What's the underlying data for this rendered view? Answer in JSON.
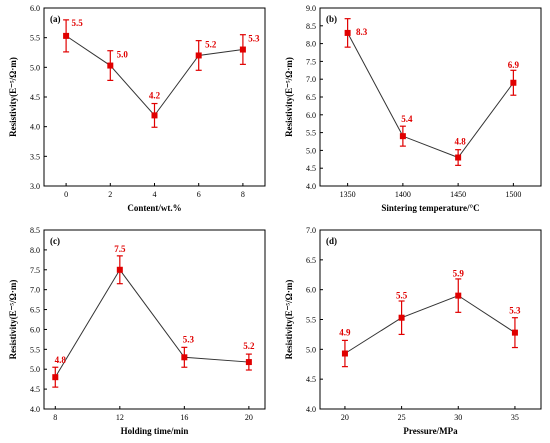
{
  "colors": {
    "marker": "#e00000",
    "line": "#333333",
    "label": "#e00000",
    "axis": "#000000"
  },
  "chart_data": [
    {
      "type": "line",
      "panel_label": "(a)",
      "xlabel": "Content/wt.%",
      "ylabel": "Resistivity(E⁻⁵/Ω·m)",
      "x": [
        0,
        2,
        4,
        6,
        8
      ],
      "y": [
        5.53,
        5.03,
        4.19,
        5.2,
        5.3
      ],
      "yerr": [
        0.27,
        0.25,
        0.2,
        0.25,
        0.25
      ],
      "data_labels": [
        "5.5",
        "5.0",
        "4.2",
        "5.2",
        "5.3"
      ],
      "xlim": [
        -1,
        9
      ],
      "ylim": [
        3.0,
        6.0
      ],
      "xticks": [
        "0",
        "2",
        "4",
        "6",
        "8"
      ],
      "yticks": [
        "3.0",
        "3.5",
        "4.0",
        "4.5",
        "5.0",
        "5.5",
        "6.0"
      ]
    },
    {
      "type": "line",
      "panel_label": "(b)",
      "xlabel": "Sintering temperature/°C",
      "ylabel": "Resistivity(E⁻⁵/Ω·m)",
      "x": [
        1350,
        1400,
        1450,
        1500
      ],
      "y": [
        8.3,
        5.4,
        4.8,
        6.9
      ],
      "yerr": [
        0.4,
        0.28,
        0.22,
        0.35
      ],
      "data_labels": [
        "8.3",
        "5.4",
        "4.8",
        "6.9"
      ],
      "xlim": [
        1325,
        1525
      ],
      "ylim": [
        4.0,
        9.0
      ],
      "xticks": [
        "1350",
        "1400",
        "1450",
        "1500"
      ],
      "yticks": [
        "4.0",
        "4.5",
        "5.0",
        "5.5",
        "6.0",
        "6.5",
        "7.0",
        "7.5",
        "8.0",
        "8.5",
        "9.0"
      ]
    },
    {
      "type": "line",
      "panel_label": "(c)",
      "xlabel": "Holding time/min",
      "ylabel": "Resistivity(E⁻⁵/Ω·m)",
      "x": [
        8,
        12,
        16,
        20
      ],
      "y": [
        4.8,
        7.5,
        5.3,
        5.18
      ],
      "yerr": [
        0.25,
        0.35,
        0.25,
        0.2
      ],
      "data_labels": [
        "4.8",
        "7.5",
        "5.3",
        "5.2"
      ],
      "xlim": [
        7.3,
        21
      ],
      "ylim": [
        4.0,
        8.5
      ],
      "xticks": [
        "8",
        "12",
        "16",
        "20"
      ],
      "yticks": [
        "4.0",
        "4.5",
        "5.0",
        "5.5",
        "6.0",
        "6.5",
        "7.0",
        "7.5",
        "8.0",
        "8.5"
      ]
    },
    {
      "type": "line",
      "panel_label": "(d)",
      "xlabel": "Pressure/MPa",
      "ylabel": "Resistivity(E⁻⁵/Ω·m)",
      "x": [
        20,
        25,
        30,
        35
      ],
      "y": [
        4.93,
        5.53,
        5.9,
        5.28
      ],
      "yerr": [
        0.22,
        0.28,
        0.28,
        0.25
      ],
      "data_labels": [
        "4.9",
        "5.5",
        "5.9",
        "5.3"
      ],
      "xlim": [
        17.8,
        37.3
      ],
      "ylim": [
        4.0,
        7.0
      ],
      "xticks": [
        "20",
        "25",
        "30",
        "35"
      ],
      "yticks": [
        "4.0",
        "4.5",
        "5.0",
        "5.5",
        "6.0",
        "6.5",
        "7.0"
      ]
    }
  ]
}
